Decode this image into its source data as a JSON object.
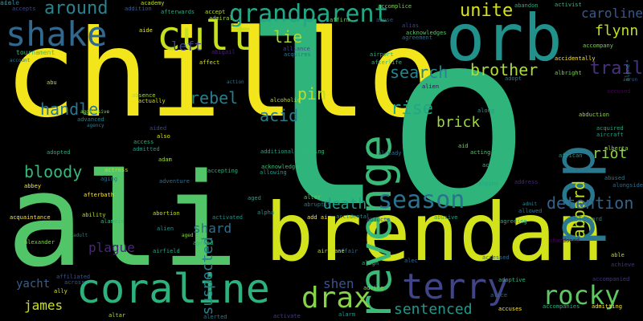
{
  "wordcloud": {
    "background": "#000000",
    "words": [
      {
        "text": "chillo",
        "color": "#f2e51c",
        "rotate": 0
      },
      {
        "text": "lo",
        "color": "#2fb47c",
        "rotate": 0
      },
      {
        "text": "ali",
        "color": "#52c569",
        "rotate": 0
      },
      {
        "text": "brendan",
        "color": "#d2e21b",
        "rotate": 0
      },
      {
        "text": "orb",
        "color": "#21918c",
        "rotate": 0
      },
      {
        "text": "pop",
        "color": "#2a788e",
        "rotate": -90
      },
      {
        "text": "revenge",
        "color": "#3aba76",
        "rotate": -90
      },
      {
        "text": "coraline",
        "color": "#2db27d",
        "rotate": 0
      },
      {
        "text": "shake",
        "color": "#31688e",
        "rotate": 0
      },
      {
        "text": "cult",
        "color": "#c8e020",
        "rotate": 0
      },
      {
        "text": "terry",
        "color": "#414487",
        "rotate": 0
      },
      {
        "text": "grandparent",
        "color": "#22a884",
        "rotate": 0
      },
      {
        "text": "season",
        "color": "#2c728e",
        "rotate": 0
      },
      {
        "text": "drax",
        "color": "#86d549",
        "rotate": 0
      },
      {
        "text": "rocky",
        "color": "#5ec962",
        "rotate": 0
      },
      {
        "text": "around",
        "color": "#25848e",
        "rotate": 0
      },
      {
        "text": "unite",
        "color": "#d8e219",
        "rotate": 0
      },
      {
        "text": "rise",
        "color": "#22a785",
        "rotate": 0
      },
      {
        "text": "lie",
        "color": "#a8db34",
        "rotate": 0
      },
      {
        "text": "caroline",
        "color": "#38588c",
        "rotate": 0
      },
      {
        "text": "flynn",
        "color": "#bddf26",
        "rotate": 0
      },
      {
        "text": "left",
        "color": "#3f4788",
        "rotate": 0
      },
      {
        "text": "trail",
        "color": "#46327e",
        "rotate": 0
      },
      {
        "text": "brother",
        "color": "#addc30",
        "rotate": 0
      },
      {
        "text": "search",
        "color": "#25858e",
        "rotate": 0
      },
      {
        "text": "handle",
        "color": "#2a768e",
        "rotate": 0
      },
      {
        "text": "rebel",
        "color": "#277f8e",
        "rotate": 0
      },
      {
        "text": "pin",
        "color": "#b5de2b",
        "rotate": 0
      },
      {
        "text": "acid",
        "color": "#287d8e",
        "rotate": 0
      },
      {
        "text": "brick",
        "color": "#9bd93c",
        "rotate": 0
      },
      {
        "text": "aboard",
        "color": "#c0df25",
        "rotate": -90
      },
      {
        "text": "riot",
        "color": "#8bd646",
        "rotate": 0
      },
      {
        "text": "bloody",
        "color": "#37b878",
        "rotate": 0
      },
      {
        "text": "suspected",
        "color": "#26828e",
        "rotate": -90
      },
      {
        "text": "death",
        "color": "#1fa088",
        "rotate": 0
      },
      {
        "text": "detention",
        "color": "#33638d",
        "rotate": 0
      },
      {
        "text": "shard",
        "color": "#2d708e",
        "rotate": 0
      },
      {
        "text": "plague",
        "color": "#482878",
        "rotate": 0
      },
      {
        "text": "shen",
        "color": "#3b528b",
        "rotate": 0
      },
      {
        "text": "james",
        "color": "#cae11f",
        "rotate": 0
      },
      {
        "text": "sentenced",
        "color": "#1f988b",
        "rotate": 0
      },
      {
        "text": "yacht",
        "color": "#35608d",
        "rotate": 0
      },
      {
        "text": "accepts",
        "color": "#3f4788",
        "rotate": 0
      },
      {
        "text": "addition",
        "color": "#355f8d",
        "rotate": 0
      },
      {
        "text": "afterwards",
        "color": "#27ad81",
        "rotate": 0
      },
      {
        "text": "accept",
        "color": "#b5de2b",
        "rotate": 0
      },
      {
        "text": "accomplice",
        "color": "#7ad151",
        "rotate": 0
      },
      {
        "text": "activist",
        "color": "#35b779",
        "rotate": 0
      },
      {
        "text": "abandon",
        "color": "#29af7f",
        "rotate": 0
      },
      {
        "text": "abuse",
        "color": "#3b528b",
        "rotate": 0
      },
      {
        "text": "affirm",
        "color": "#6ece58",
        "rotate": 0
      },
      {
        "text": "alias",
        "color": "#3f4788",
        "rotate": 0
      },
      {
        "text": "acknowledges",
        "color": "#56c667",
        "rotate": 0
      },
      {
        "text": "agreement",
        "color": "#2e6e8e",
        "rotate": 0
      },
      {
        "text": "airport",
        "color": "#25ac82",
        "rotate": 0
      },
      {
        "text": "accidentally",
        "color": "#fde725",
        "rotate": 0
      },
      {
        "text": "alone",
        "color": "#25848e",
        "rotate": -90
      },
      {
        "text": "accompany",
        "color": "#7ad151",
        "rotate": 0
      },
      {
        "text": "tournament",
        "color": "#3dbc74",
        "rotate": 0
      },
      {
        "text": "account",
        "color": "#2a788e",
        "rotate": 0
      },
      {
        "text": "academy",
        "color": "#c0df25",
        "rotate": 0
      },
      {
        "text": "aide",
        "color": "#e5e419",
        "rotate": 0
      },
      {
        "text": "admiral",
        "color": "#a0da39",
        "rotate": 0
      },
      {
        "text": "abigail",
        "color": "#481f70",
        "rotate": 0
      },
      {
        "text": "affect",
        "color": "#d5e21a",
        "rotate": 0
      },
      {
        "text": "alliance",
        "color": "#3e4a89",
        "rotate": 0
      },
      {
        "text": "acquires",
        "color": "#2c728e",
        "rotate": 0
      },
      {
        "text": "afterlife",
        "color": "#35b779",
        "rotate": 0
      },
      {
        "text": "adopt",
        "color": "#2a788e",
        "rotate": 0
      },
      {
        "text": "albright",
        "color": "#7ad151",
        "rotate": 0
      },
      {
        "text": "action",
        "color": "#2d708e",
        "rotate": 0
      },
      {
        "text": "actually",
        "color": "#d0e11c",
        "rotate": 0
      },
      {
        "text": "absence",
        "color": "#a5db36",
        "rotate": 0
      },
      {
        "text": "aggressive",
        "color": "#90d743",
        "rotate": 0
      },
      {
        "text": "advanced",
        "color": "#26828e",
        "rotate": 0
      },
      {
        "text": "agency",
        "color": "#287d8e",
        "rotate": 0
      },
      {
        "text": "alcoholic",
        "color": "#bddf26",
        "rotate": 0
      },
      {
        "text": "along",
        "color": "#1e9b8a",
        "rotate": 0
      },
      {
        "text": "accused",
        "color": "#440154",
        "rotate": 0
      },
      {
        "text": "aaron",
        "color": "#39568c",
        "rotate": 0
      },
      {
        "text": "abduction",
        "color": "#98d83e",
        "rotate": 0
      },
      {
        "text": "acquired",
        "color": "#22a785",
        "rotate": 0
      },
      {
        "text": "aircraft",
        "color": "#1f9e89",
        "rotate": 0
      },
      {
        "text": "aided",
        "color": "#404688",
        "rotate": 0
      },
      {
        "text": "also",
        "color": "#e2e418",
        "rotate": 0
      },
      {
        "text": "access",
        "color": "#2ab07f",
        "rotate": 0
      },
      {
        "text": "admitted",
        "color": "#1e9c89",
        "rotate": 0
      },
      {
        "text": "adopted",
        "color": "#25ac82",
        "rotate": 0
      },
      {
        "text": "additional",
        "color": "#20a486",
        "rotate": 0
      },
      {
        "text": "accusing",
        "color": "#35b779",
        "rotate": 0
      },
      {
        "text": "already",
        "color": "#2f6c8e",
        "rotate": 0
      },
      {
        "text": "aid",
        "color": "#6ece58",
        "rotate": 0
      },
      {
        "text": "acting",
        "color": "#56c667",
        "rotate": 0
      },
      {
        "text": "african",
        "color": "#1f9a8a",
        "rotate": 0
      },
      {
        "text": "alberta",
        "color": "#95d840",
        "rotate": 0
      },
      {
        "text": "alongside",
        "color": "#2e6f8e",
        "rotate": 0
      },
      {
        "text": "abused",
        "color": "#297a8e",
        "rotate": 0
      },
      {
        "text": "actress",
        "color": "#b2dd2d",
        "rotate": 0
      },
      {
        "text": "aging",
        "color": "#2d708e",
        "rotate": 0
      },
      {
        "text": "afterbath",
        "color": "#fde725",
        "rotate": 0
      },
      {
        "text": "adam",
        "color": "#9bd93c",
        "rotate": 0
      },
      {
        "text": "adventure",
        "color": "#2c728e",
        "rotate": 0
      },
      {
        "text": "accepting",
        "color": "#2db27d",
        "rotate": 0
      },
      {
        "text": "allowing",
        "color": "#1e9b8a",
        "rotate": 0
      },
      {
        "text": "acknowledge",
        "color": "#3dbc74",
        "rotate": 0
      },
      {
        "text": "activity",
        "color": "#2fb47c",
        "rotate": 0
      },
      {
        "text": "address",
        "color": "#482475",
        "rotate": 0
      },
      {
        "text": "alter",
        "color": "#5ec962",
        "rotate": 0
      },
      {
        "text": "abruptly",
        "color": "#2a788e",
        "rotate": 0
      },
      {
        "text": "add air",
        "color": "#fde725",
        "rotate": 0
      },
      {
        "text": "accidental",
        "color": "#24868e",
        "rotate": 0
      },
      {
        "text": "allowed",
        "color": "#2d708e",
        "rotate": 0
      },
      {
        "text": "admit",
        "color": "#26828e",
        "rotate": 0
      },
      {
        "text": "abbey",
        "color": "#fde725",
        "rotate": 0
      },
      {
        "text": "ability",
        "color": "#b2dd2d",
        "rotate": 0
      },
      {
        "text": "abortion",
        "color": "#c2df23",
        "rotate": 0
      },
      {
        "text": "activated",
        "color": "#21918c",
        "rotate": 0
      },
      {
        "text": "alpha",
        "color": "#1f948c",
        "rotate": 0
      },
      {
        "text": "abducts",
        "color": "#3f4788",
        "rotate": 0
      },
      {
        "text": "abusive",
        "color": "#20a386",
        "rotate": 0
      },
      {
        "text": "agreeing",
        "color": "#2ab07f",
        "rotate": 0
      },
      {
        "text": "afterward",
        "color": "#26828e",
        "rotate": 0
      },
      {
        "text": "acquaintance",
        "color": "#fde725",
        "rotate": 0
      },
      {
        "text": "alamein",
        "color": "#35b779",
        "rotate": 0
      },
      {
        "text": "alien",
        "color": "#1f948c",
        "rotate": 0
      },
      {
        "text": "aged",
        "color": "#8bd646",
        "rotate": 0
      },
      {
        "text": "adult",
        "color": "#25848e",
        "rotate": 0
      },
      {
        "text": "alexander",
        "color": "#7fd34e",
        "rotate": 0
      },
      {
        "text": "airfield",
        "color": "#22a785",
        "rotate": 0
      },
      {
        "text": "agreed",
        "color": "#2fb47c",
        "rotate": 0
      },
      {
        "text": "affair",
        "color": "#31688e",
        "rotate": 0
      },
      {
        "text": "align",
        "color": "#2db27d",
        "rotate": 0
      },
      {
        "text": "alec",
        "color": "#31688e",
        "rotate": 0
      },
      {
        "text": "abandoned",
        "color": "#440154",
        "rotate": 0
      },
      {
        "text": "affiliated",
        "color": "#3b528b",
        "rotate": 0
      },
      {
        "text": "across",
        "color": "#38598c",
        "rotate": 0
      },
      {
        "text": "ally",
        "color": "#dde318",
        "rotate": 0
      },
      {
        "text": "advice",
        "color": "#86d549",
        "rotate": 0
      },
      {
        "text": "adoptive",
        "color": "#2db27d",
        "rotate": 0
      },
      {
        "text": "accompanied",
        "color": "#46337f",
        "rotate": 0
      },
      {
        "text": "alice",
        "color": "#31688e",
        "rotate": 0
      },
      {
        "text": "accompanies",
        "color": "#2db27d",
        "rotate": 0
      },
      {
        "text": "admitting",
        "color": "#fde725",
        "rotate": 0
      },
      {
        "text": "altar",
        "color": "#a8db34",
        "rotate": 0
      },
      {
        "text": "alerted",
        "color": "#2a788e",
        "rotate": 0
      },
      {
        "text": "activate",
        "color": "#433e85",
        "rotate": 0
      },
      {
        "text": "alarm",
        "color": "#1f968b",
        "rotate": 0
      },
      {
        "text": "accuses",
        "color": "#fde725",
        "rotate": 0
      },
      {
        "text": "airplane",
        "color": "#b8de29",
        "rotate": 0
      },
      {
        "text": "accessed",
        "color": "#31688e",
        "rotate": 0
      },
      {
        "text": "able",
        "color": "#b2dd2d",
        "rotate": 0
      },
      {
        "text": "aged",
        "color": "#20a386",
        "rotate": 0
      },
      {
        "text": "alpine",
        "color": "#22a785",
        "rotate": 0
      },
      {
        "text": "abu",
        "color": "#b2dd2d",
        "rotate": 0
      },
      {
        "text": "alien",
        "color": "#440154",
        "rotate": 0
      },
      {
        "text": "achieve",
        "color": "#46337f",
        "rotate": 0
      },
      {
        "text": "ace",
        "color": "#26828e",
        "rotate": 0
      },
      {
        "text": "aisle",
        "color": "#2a788e",
        "rotate": 0
      }
    ]
  }
}
